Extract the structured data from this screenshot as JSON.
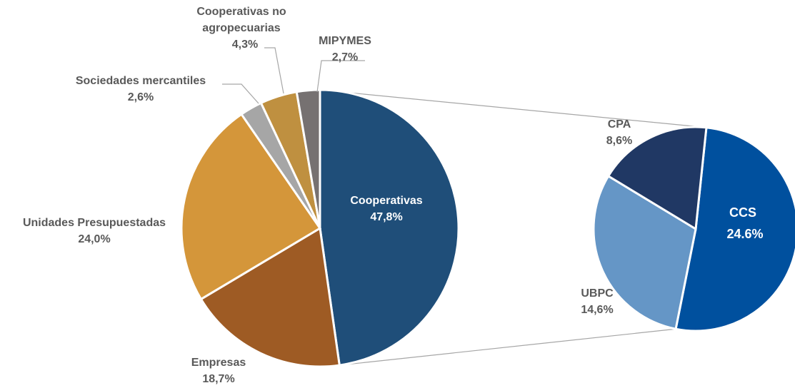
{
  "chart_data": [
    {
      "type": "pie",
      "categories": [
        "Cooperativas",
        "Empresas",
        "Unidades Presupuestadas",
        "Sociedades mercantiles",
        "Cooperativas no agropecuarias",
        "MIPYMES"
      ],
      "values": [
        47.8,
        18.7,
        24.0,
        2.6,
        4.3,
        2.7
      ],
      "colors": [
        "#1f4e79",
        "#9e5b24",
        "#d4963a",
        "#a6a6a6",
        "#bf9040",
        "#767171"
      ],
      "labels": {
        "coop": {
          "name": "Cooperativas",
          "value": "47,8%"
        },
        "empresas": {
          "name": "Empresas",
          "value": "18,7%"
        },
        "unidades": {
          "name": "Unidades Presupuestadas",
          "value": "24,0%"
        },
        "sociedades": {
          "name": "Sociedades mercantiles",
          "value": "2,6%"
        },
        "coop_no_agro": {
          "name_line1": "Cooperativas no",
          "name_line2": "agropecuarias",
          "value": "4,3%"
        },
        "mipymes": {
          "name": "MIPYMES",
          "value": "2,7%"
        }
      }
    },
    {
      "type": "pie",
      "categories": [
        "CCS",
        "UBPC",
        "CPA"
      ],
      "values": [
        24.6,
        14.6,
        8.6
      ],
      "colors": [
        "#00509e",
        "#6596c6",
        "#203864"
      ],
      "labels": {
        "ccs": {
          "name": "CCS",
          "value": "24.6%"
        },
        "ubpc": {
          "name": "UBPC",
          "value": "14,6%"
        },
        "cpa": {
          "name": "CPA",
          "value": "8,6%"
        }
      }
    }
  ]
}
